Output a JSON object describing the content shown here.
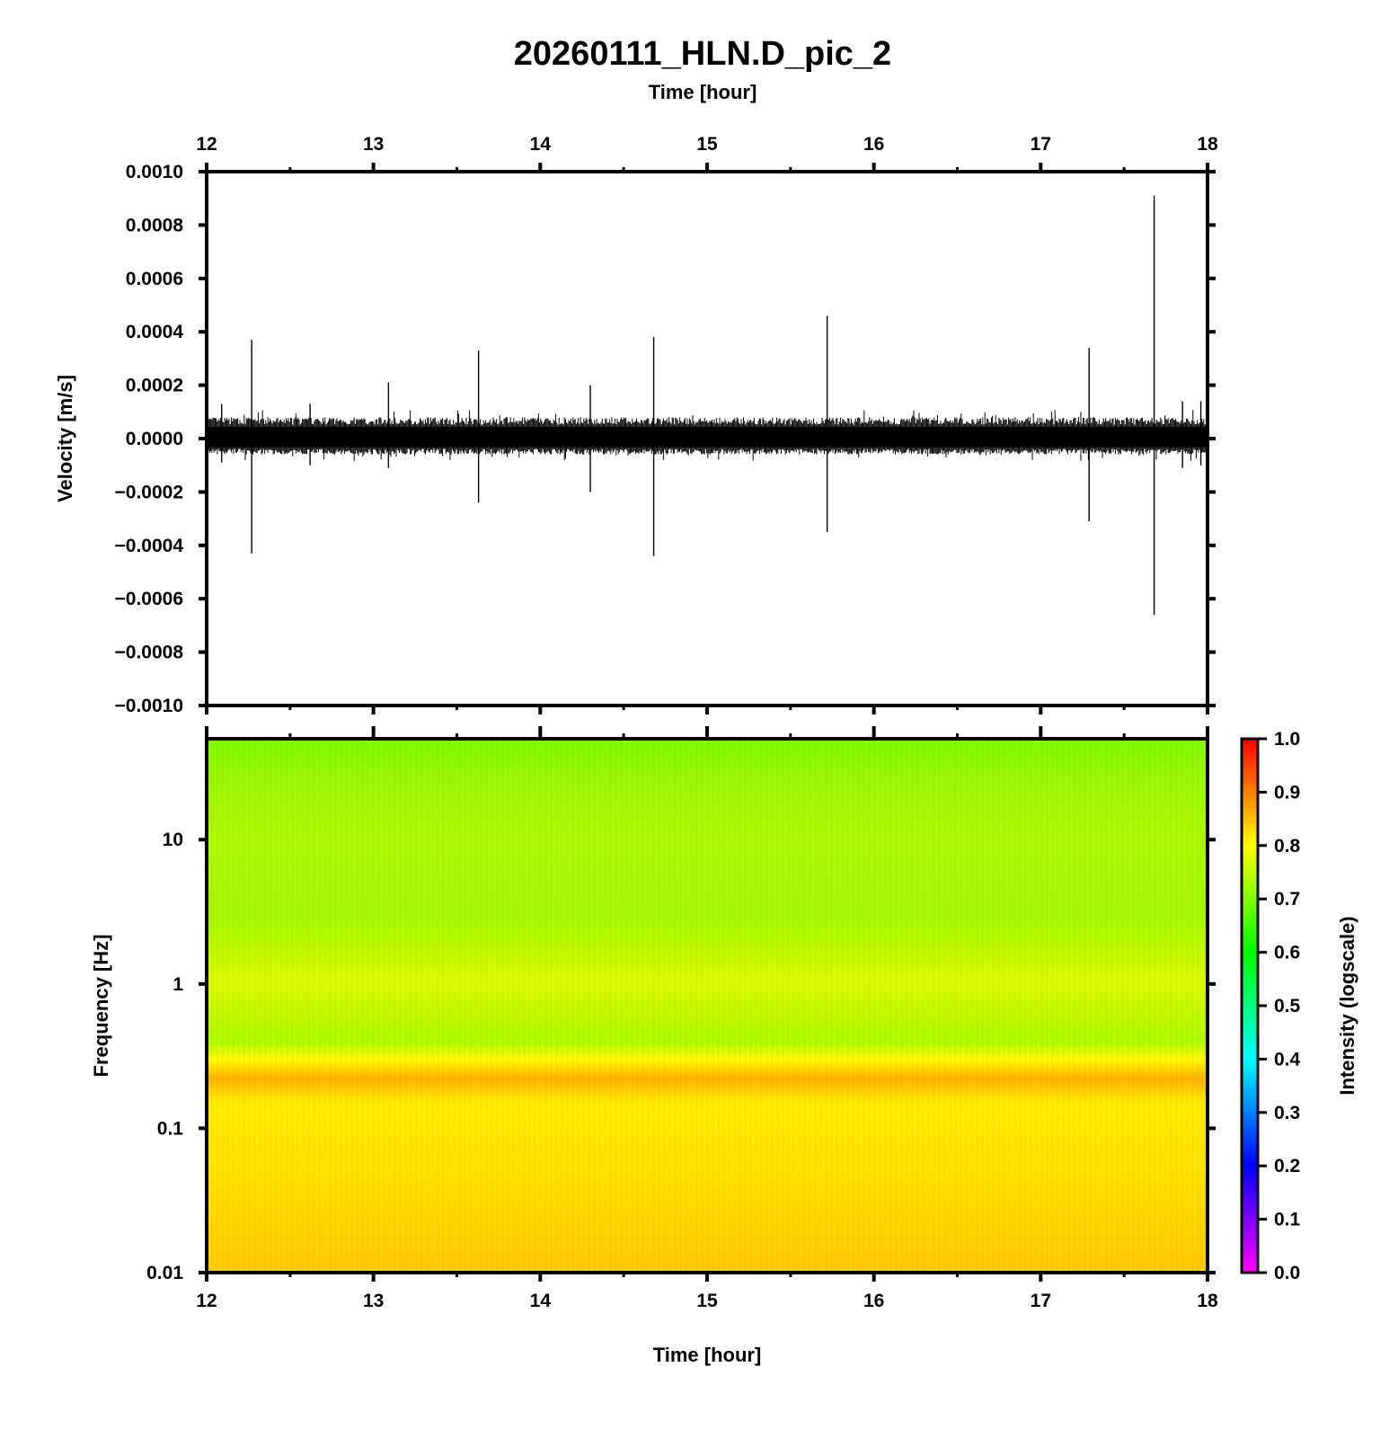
{
  "title": "20260111_HLN.D_pic_2",
  "colors": {
    "frame": "#000000",
    "trace": "#000000",
    "colormap": [
      "#ff00ff",
      "#8000ff",
      "#0000ff",
      "#0080ff",
      "#00ffff",
      "#00ff80",
      "#00ff00",
      "#80ff00",
      "#ffff00",
      "#ff8000",
      "#ff0000"
    ]
  },
  "chart_data": [
    {
      "type": "line",
      "title": "20260111_HLN.D_pic_2",
      "xlabel": "Time [hour]",
      "ylabel": "Velocity [m/s]",
      "xlim": [
        12,
        18
      ],
      "ylim": [
        -0.001,
        0.001
      ],
      "xticks": [
        "12",
        "13",
        "14",
        "15",
        "16",
        "17",
        "18"
      ],
      "yticks": [
        "0.0010",
        "0.0008",
        "0.0006",
        "0.0004",
        "0.0002",
        "0.0000",
        "−0.0002",
        "−0.0004",
        "−0.0006",
        "−0.0008",
        "−0.0010"
      ],
      "noise_band": [
        -6e-05,
        8e-05
      ],
      "spikes": [
        {
          "t": 12.09,
          "max": 0.00013,
          "min": -9e-05
        },
        {
          "t": 12.27,
          "max": 0.00037,
          "min": -0.00043
        },
        {
          "t": 12.62,
          "max": 0.00013,
          "min": -0.0001
        },
        {
          "t": 13.09,
          "max": 0.00021,
          "min": -0.00011
        },
        {
          "t": 13.63,
          "max": 0.00033,
          "min": -0.00024
        },
        {
          "t": 14.3,
          "max": 0.0002,
          "min": -0.0002
        },
        {
          "t": 14.68,
          "max": 0.00038,
          "min": -0.00044
        },
        {
          "t": 15.72,
          "max": 0.00046,
          "min": -0.00035
        },
        {
          "t": 17.29,
          "max": 0.00034,
          "min": -0.00031
        },
        {
          "t": 17.68,
          "max": 0.00091,
          "min": -0.00066
        },
        {
          "t": 17.85,
          "max": 0.00014,
          "min": -0.00011
        },
        {
          "t": 17.96,
          "max": 0.00014,
          "min": -0.0001
        }
      ]
    },
    {
      "type": "heatmap",
      "xlabel": "Time [hour]",
      "ylabel": "Frequency [Hz]",
      "xlim": [
        12,
        18
      ],
      "ylim": [
        0.01,
        50
      ],
      "yscale": "log",
      "xticks": [
        "12",
        "13",
        "14",
        "15",
        "16",
        "17",
        "18"
      ],
      "yticks": [
        "10",
        "1",
        "0.1",
        "0.01"
      ],
      "colorbar": {
        "label": "Intensity (logscale)",
        "range": [
          0,
          1
        ],
        "ticks": [
          "1.0",
          "0.9",
          "0.8",
          "0.7",
          "0.6",
          "0.5",
          "0.4",
          "0.3",
          "0.2",
          "0.1",
          "0.0"
        ]
      },
      "intensity_profile": [
        {
          "freq": 0.01,
          "value": 0.84
        },
        {
          "freq": 0.05,
          "value": 0.82
        },
        {
          "freq": 0.15,
          "value": 0.81
        },
        {
          "freq": 0.22,
          "value": 0.86
        },
        {
          "freq": 0.3,
          "value": 0.8
        },
        {
          "freq": 0.4,
          "value": 0.73
        },
        {
          "freq": 0.7,
          "value": 0.75
        },
        {
          "freq": 1.0,
          "value": 0.77
        },
        {
          "freq": 1.5,
          "value": 0.75
        },
        {
          "freq": 3,
          "value": 0.72
        },
        {
          "freq": 10,
          "value": 0.73
        },
        {
          "freq": 30,
          "value": 0.71
        },
        {
          "freq": 50,
          "value": 0.69
        }
      ]
    }
  ]
}
